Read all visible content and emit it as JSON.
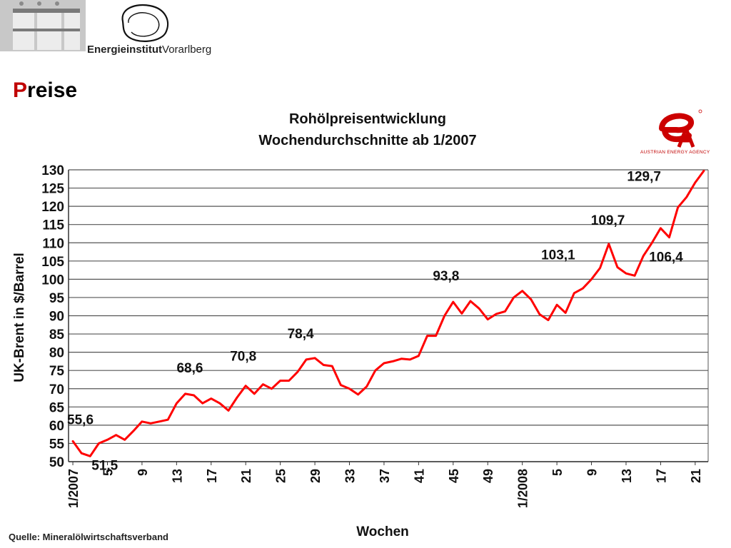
{
  "header": {
    "org_name_bold": "Energieinstitut",
    "org_name_rest": "Vorarlberg"
  },
  "slide": {
    "title_initial": "P",
    "title_rest": "reise"
  },
  "agency": {
    "name": "AUSTRIAN ENERGY AGENCY"
  },
  "source_note": "Quelle: Mineralölwirtschaftsverband",
  "colors": {
    "series": "#ff0000",
    "title_accent": "#c00000",
    "grid": "#555555"
  },
  "chart_data": {
    "type": "line",
    "title": "Rohölpreisentwicklung",
    "subtitle": "Wochendurchschnitte ab 1/2007",
    "xlabel": "Wochen",
    "ylabel": "UK-Brent in $/Barrel",
    "ylim": [
      50,
      130
    ],
    "yticks": [
      50,
      55,
      60,
      65,
      70,
      75,
      80,
      85,
      90,
      95,
      100,
      105,
      110,
      115,
      120,
      125,
      130
    ],
    "grid": true,
    "x_tick_labels": [
      "1/2007",
      "5",
      "9",
      "13",
      "17",
      "21",
      "25",
      "29",
      "33",
      "37",
      "41",
      "45",
      "49",
      "1/2008",
      "5",
      "9",
      "13",
      "17",
      "21"
    ],
    "x_tick_weeks": [
      1,
      5,
      9,
      13,
      17,
      21,
      25,
      29,
      33,
      37,
      41,
      45,
      49,
      53,
      57,
      61,
      65,
      69,
      73
    ],
    "weeks": [
      1,
      2,
      3,
      4,
      5,
      6,
      7,
      8,
      9,
      10,
      11,
      12,
      13,
      14,
      15,
      16,
      17,
      18,
      19,
      20,
      21,
      22,
      23,
      24,
      25,
      26,
      27,
      28,
      29,
      30,
      31,
      32,
      33,
      34,
      35,
      36,
      37,
      38,
      39,
      40,
      41,
      42,
      43,
      44,
      45,
      46,
      47,
      48,
      49,
      50,
      51,
      52,
      53,
      54,
      55,
      56,
      57,
      58,
      59,
      60,
      61,
      62,
      63,
      64,
      65,
      66,
      67,
      68,
      69,
      70,
      71,
      72,
      73,
      74
    ],
    "values": [
      55.6,
      52.3,
      51.5,
      55,
      56,
      57.3,
      56,
      58.4,
      61,
      60.5,
      61,
      61.5,
      66,
      68.6,
      68.2,
      66,
      67.3,
      66,
      64,
      67.6,
      70.8,
      68.6,
      71.2,
      70,
      72.2,
      72.2,
      74.6,
      78,
      78.4,
      76.5,
      76.2,
      71,
      70,
      68.4,
      70.6,
      75,
      77,
      77.5,
      78.2,
      78,
      79,
      84.5,
      84.5,
      90,
      93.8,
      90.6,
      94,
      92,
      89,
      90.5,
      91.2,
      95,
      96.8,
      94.5,
      90.4,
      88.8,
      93,
      90.8,
      96.2,
      97.5,
      100,
      103.1,
      109.7,
      103.3,
      101.6,
      101,
      106.4,
      110,
      114,
      111.5,
      119.7,
      122.5,
      126.5,
      129.7
    ],
    "annotations": [
      {
        "text": "55,6",
        "week": 1,
        "value": 55.6
      },
      {
        "text": "51,5",
        "week": 3,
        "value": 51.5
      },
      {
        "text": "68,6",
        "week": 14,
        "value": 68.6
      },
      {
        "text": "70,8",
        "week": 21,
        "value": 70.8
      },
      {
        "text": "78,4",
        "week": 29,
        "value": 78.4
      },
      {
        "text": "93,8",
        "week": 45,
        "value": 93.8
      },
      {
        "text": "103,1",
        "week": 62,
        "value": 103.1
      },
      {
        "text": "109,7",
        "week": 63,
        "value": 109.7
      },
      {
        "text": "106,4",
        "week": 67,
        "value": 106.4
      },
      {
        "text": "129,7",
        "week": 74,
        "value": 129.7
      }
    ]
  }
}
